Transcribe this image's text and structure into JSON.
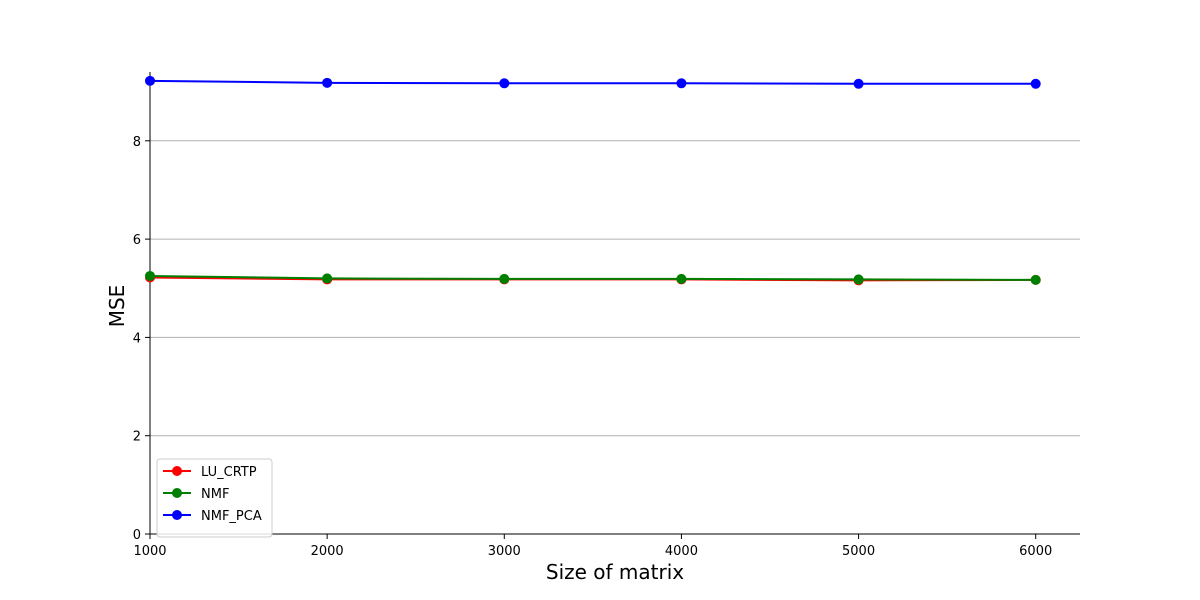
{
  "chart_data": {
    "type": "line",
    "title": "",
    "xlabel": "Size of matrix",
    "ylabel": "MSE",
    "x": [
      1000,
      2000,
      3000,
      4000,
      5000,
      6000
    ],
    "xlim": [
      1000,
      6250
    ],
    "ylim": [
      0,
      9.4
    ],
    "xticks": [
      1000,
      2000,
      3000,
      4000,
      5000,
      6000
    ],
    "yticks": [
      0,
      2,
      4,
      6,
      8
    ],
    "grid": "horizontal",
    "legend_position": "lower-left",
    "series": [
      {
        "name": "LU_CRTP",
        "color": "#ff0000",
        "values": [
          5.22,
          5.18,
          5.18,
          5.18,
          5.16,
          5.17
        ]
      },
      {
        "name": "NMF",
        "color": "#008000",
        "values": [
          5.25,
          5.2,
          5.19,
          5.19,
          5.18,
          5.17
        ]
      },
      {
        "name": "NMF_PCA",
        "color": "#0000ff",
        "values": [
          9.22,
          9.18,
          9.17,
          9.17,
          9.16,
          9.16
        ]
      }
    ]
  }
}
